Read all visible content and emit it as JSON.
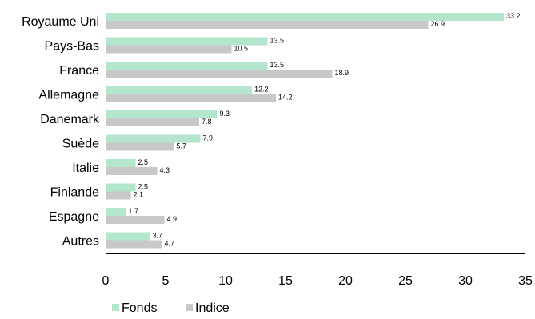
{
  "chart_data": {
    "type": "bar",
    "orientation": "horizontal",
    "title": "",
    "xlabel": "",
    "ylabel": "",
    "categories": [
      "Royaume Uni",
      "Pays-Bas",
      "France",
      "Allemagne",
      "Danemark",
      "Suède",
      "Italie",
      "Finlande",
      "Espagne",
      "Autres"
    ],
    "series": [
      {
        "name": "Fonds",
        "color": "#b3e6cc",
        "values": [
          33.2,
          13.5,
          13.5,
          12.2,
          9.3,
          7.9,
          2.5,
          2.5,
          1.7,
          3.7
        ]
      },
      {
        "name": "Indice",
        "color": "#c8c8c8",
        "values": [
          26.9,
          10.5,
          18.9,
          14.2,
          7.8,
          5.7,
          4.3,
          2.1,
          4.9,
          4.7
        ]
      }
    ],
    "xlim": [
      0,
      35
    ],
    "xticks": [
      0,
      5,
      10,
      15,
      20,
      25,
      30,
      35
    ],
    "grid": false,
    "legend_position": "bottom-left"
  }
}
